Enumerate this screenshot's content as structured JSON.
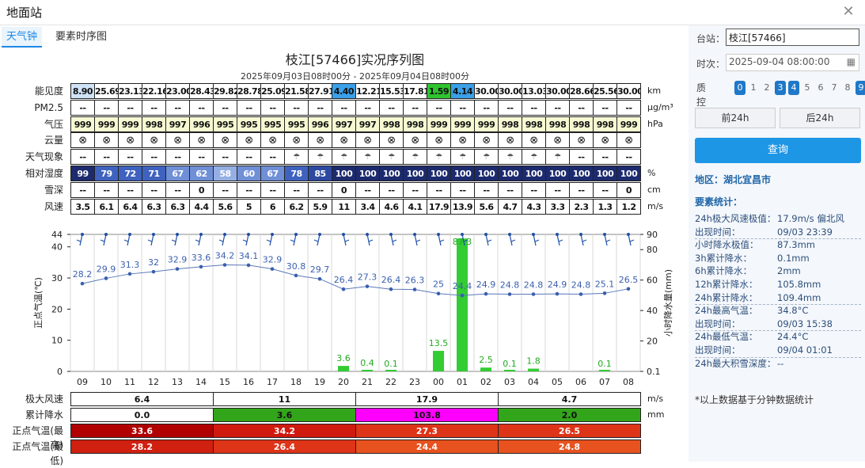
{
  "window": {
    "title": "地面站",
    "close_icon": "close-icon"
  },
  "tabs": [
    {
      "label": "天气钟"
    },
    {
      "label": "要素时序图"
    }
  ],
  "chart": {
    "title": "枝江[57466]实况序列图",
    "subtitle": "2025年09月03日08时00分 - 2025年09月04日08时00分"
  },
  "hours": [
    "09",
    "10",
    "11",
    "12",
    "13",
    "14",
    "15",
    "16",
    "17",
    "18",
    "19",
    "20",
    "21",
    "22",
    "23",
    "00",
    "01",
    "02",
    "03",
    "04",
    "05",
    "06",
    "07",
    "08"
  ],
  "rows": [
    {
      "label": "能见度",
      "unit": "km",
      "values": [
        "8.90",
        "25.69",
        "23.13",
        "22.16",
        "23.00",
        "28.43",
        "29.82",
        "28.78",
        "25.09",
        "21.58",
        "27.91",
        "4.40",
        "12.21",
        "15.53",
        "17.81",
        "1.59",
        "4.14",
        "30.00",
        "30.00",
        "13.03",
        "30.00",
        "28.66",
        "25.56",
        "30.00"
      ]
    },
    {
      "label": "PM2.5",
      "unit": "μg/m³",
      "values": [
        "--",
        "--",
        "--",
        "--",
        "--",
        "--",
        "--",
        "--",
        "--",
        "--",
        "--",
        "--",
        "--",
        "--",
        "--",
        "--",
        "--",
        "--",
        "--",
        "--",
        "--",
        "--",
        "--",
        "--"
      ]
    },
    {
      "label": "气压",
      "unit": "hPa",
      "values": [
        "999",
        "999",
        "999",
        "998",
        "997",
        "996",
        "995",
        "995",
        "995",
        "995",
        "996",
        "997",
        "997",
        "998",
        "998",
        "999",
        "999",
        "999",
        "998",
        "998",
        "998",
        "998",
        "998",
        "999"
      ]
    },
    {
      "label": "云量",
      "unit": "",
      "values": [
        "⊗",
        "⊗",
        "⊗",
        "⊗",
        "⊗",
        "⊗",
        "⊗",
        "⊗",
        "⊗",
        "⊗",
        "⊗",
        "⊗",
        "⊗",
        "⊗",
        "⊗",
        "⊗",
        "⊗",
        "⊗",
        "⊗",
        "⊗",
        "⊗",
        "⊗",
        "⊗",
        "⊗"
      ]
    },
    {
      "label": "天气现象",
      "unit": "",
      "values": [
        "--",
        "--",
        "--",
        "--",
        "--",
        "--",
        "--",
        "--",
        "--",
        "☂",
        "☂",
        "☂",
        "☂",
        "☂",
        "☂",
        "☂",
        "☂",
        "☂",
        "☂",
        "☂",
        "☂",
        "--",
        "--",
        "--"
      ]
    },
    {
      "label": "相对湿度",
      "unit": "%",
      "values": [
        "99",
        "79",
        "72",
        "71",
        "67",
        "62",
        "58",
        "60",
        "67",
        "78",
        "85",
        "100",
        "100",
        "100",
        "100",
        "100",
        "100",
        "100",
        "100",
        "100",
        "100",
        "100",
        "100",
        "100"
      ]
    },
    {
      "label": "雪深",
      "unit": "cm",
      "values": [
        "--",
        "--",
        "--",
        "--",
        "--",
        "0",
        "--",
        "--",
        "--",
        "--",
        "--",
        "0",
        "--",
        "--",
        "--",
        "--",
        "--",
        "--",
        "--",
        "--",
        "--",
        "--",
        "--",
        "0"
      ]
    },
    {
      "label": "风速",
      "unit": "m/s",
      "values": [
        "3.5",
        "6.1",
        "6.4",
        "6.3",
        "6.3",
        "4.4",
        "5.6",
        "5",
        "6",
        "6.2",
        "5.9",
        "11",
        "3.4",
        "4.6",
        "4.1",
        "17.9",
        "13.9",
        "5.6",
        "4.7",
        "4.3",
        "3.3",
        "2.3",
        "1.3",
        "1.2"
      ]
    }
  ],
  "plot": {
    "left_axis_label": "正点气温(℃)",
    "right_axis_label": "小时降水量(mm)",
    "left_ticks": [
      "44",
      "40",
      "30",
      "20",
      "10",
      "0"
    ],
    "right_ticks": [
      "90",
      "80",
      "60",
      "40",
      "20",
      "0.1"
    ],
    "temperature": [
      28.2,
      29.9,
      31.3,
      32,
      32.9,
      33.6,
      34.2,
      34.1,
      32.9,
      30.8,
      29.7,
      26.4,
      27.3,
      26.4,
      26.3,
      25,
      24.4,
      24.9,
      24.8,
      24.8,
      24.9,
      24.8,
      25.1,
      26.5
    ],
    "precip": [
      0,
      0,
      0,
      0,
      0,
      0,
      0,
      0,
      0,
      0,
      0,
      3.6,
      0.4,
      0.1,
      0,
      13.5,
      87.3,
      2.5,
      0.1,
      1.8,
      0,
      0,
      0.1,
      0
    ],
    "precip_labels": [
      "",
      "",
      "",
      "",
      "",
      "",
      "",
      "",
      "",
      "",
      "",
      "3.6",
      "0.4",
      "0.1",
      "",
      "13.5",
      "87.3",
      "2.5",
      "0.1",
      "1.8",
      "",
      "",
      "0.1",
      ""
    ]
  },
  "bottom": [
    {
      "label": "极大风速",
      "unit": "m/s",
      "values": [
        "6.4",
        "11",
        "17.9",
        "4.7"
      ]
    },
    {
      "label": "累计降水",
      "unit": "mm",
      "values": [
        "0.0",
        "3.6",
        "103.8",
        "2.0"
      ]
    },
    {
      "label": "正点气温(最高)",
      "unit": "",
      "values": [
        "33.6",
        "34.2",
        "27.3",
        "26.5"
      ]
    },
    {
      "label": "正点气温(最低)",
      "unit": "",
      "values": [
        "28.2",
        "26.4",
        "24.4",
        "24.8"
      ]
    }
  ],
  "side": {
    "station_label": "台站：",
    "station_value": "枝江[57466]",
    "time_label": "时次：",
    "time_value": "2025-09-04 08:00:00",
    "qc_label": "质控码:",
    "qc_codes": [
      "0",
      "1",
      "2",
      "3",
      "4",
      "5",
      "6",
      "7",
      "8",
      "9"
    ],
    "qc_on": [
      0,
      3,
      4,
      9
    ],
    "prev_label": "前24h",
    "next_label": "后24h",
    "query_label": "查询",
    "region": "地区：湖北宜昌市",
    "stats_header": "要素统计：",
    "stats": [
      {
        "k": "24h极大风速极值：",
        "v": "17.9m/s 偏北风"
      },
      {
        "k": "出现时间：",
        "v": "09/03 23:39"
      },
      {
        "k": "小时降水极值：",
        "v": "87.3mm"
      },
      {
        "k": "3h累计降水：",
        "v": "0.1mm"
      },
      {
        "k": "6h累计降水：",
        "v": "2mm"
      },
      {
        "k": "12h累计降水：",
        "v": "105.8mm"
      },
      {
        "k": "24h累计降水：",
        "v": "109.4mm"
      },
      {
        "k": "24h最高气温：",
        "v": "34.8°C"
      },
      {
        "k": "出现时间：",
        "v": "09/03 15:38"
      },
      {
        "k": "24h最低气温：",
        "v": "24.4°C"
      },
      {
        "k": "出现时间：",
        "v": "09/04 01:01"
      },
      {
        "k": "24h最大积雪深度：",
        "v": "--"
      }
    ],
    "note": "*以上数据基于分钟数据统计"
  }
}
